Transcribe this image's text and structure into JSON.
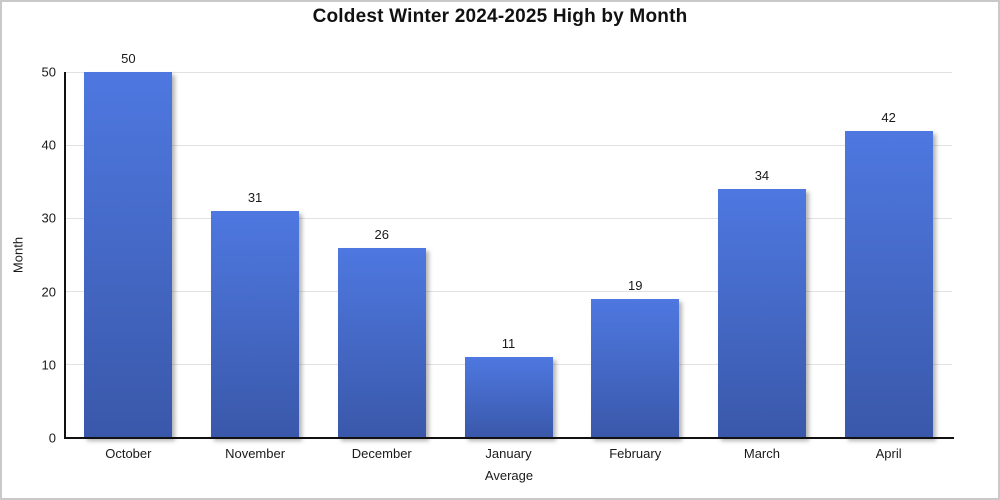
{
  "title": "Coldest Winter 2024-2025 High by Month",
  "chart_data": {
    "type": "bar",
    "title": "Coldest Winter 2024-2025 High by Month",
    "categories": [
      "October",
      "November",
      "December",
      "January",
      "February",
      "March",
      "April"
    ],
    "values": [
      50,
      31,
      26,
      11,
      19,
      34,
      42
    ],
    "xlabel": "Average",
    "ylabel": "Month",
    "ylim": [
      0,
      50
    ],
    "yticks": [
      0,
      10,
      20,
      30,
      40,
      50
    ],
    "grid": true,
    "legend": "none",
    "bar_gradient_top": "#4e78e0",
    "bar_gradient_bottom": "#3a58aa",
    "gridline_color": "#e2e2e2",
    "axis_color": "#111111",
    "text_color": "#1a1a1a"
  }
}
